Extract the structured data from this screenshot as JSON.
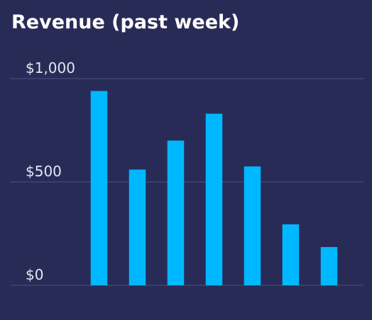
{
  "chart_data": {
    "type": "bar",
    "title": "Revenue (past week)",
    "categories": [
      null,
      null,
      null,
      null,
      null,
      null,
      null
    ],
    "values": [
      940,
      560,
      700,
      830,
      575,
      295,
      185
    ],
    "color": "#00b8ff",
    "ylim": [
      0,
      1000
    ],
    "yticks": [
      {
        "value": 0,
        "label": "$0"
      },
      {
        "value": 500,
        "label": "$500"
      },
      {
        "value": 1000,
        "label": "$1,000"
      }
    ],
    "grid": true
  }
}
